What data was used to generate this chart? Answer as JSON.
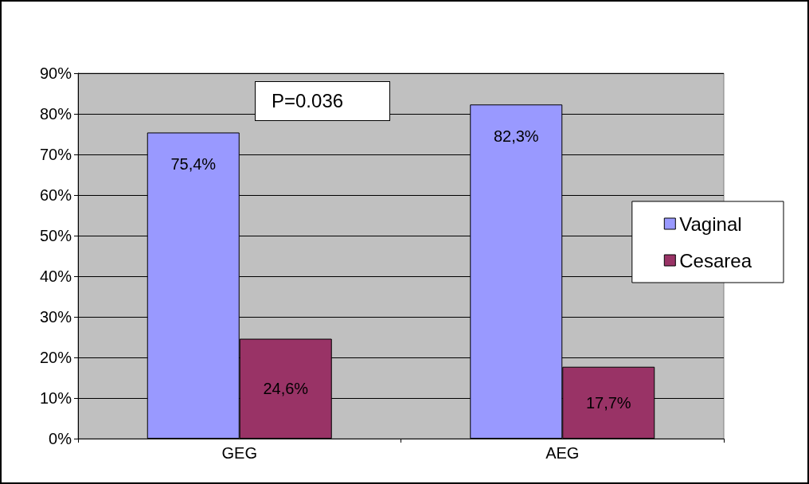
{
  "chart_data": {
    "type": "bar",
    "categories": [
      "GEG",
      "AEG"
    ],
    "series": [
      {
        "name": "Vaginal",
        "color": "#9999ff",
        "values": [
          75.4,
          82.3
        ],
        "value_labels": [
          "75,4%",
          "82,3%"
        ]
      },
      {
        "name": "Cesarea",
        "color": "#993366",
        "values": [
          24.6,
          17.7
        ],
        "value_labels": [
          "24,6%",
          "17,7%"
        ]
      }
    ],
    "ylim": [
      0,
      90
    ],
    "yticks": [
      {
        "value": 0,
        "label": "0%"
      },
      {
        "value": 10,
        "label": "10%"
      },
      {
        "value": 20,
        "label": "20%"
      },
      {
        "value": 30,
        "label": "30%"
      },
      {
        "value": 40,
        "label": "40%"
      },
      {
        "value": 50,
        "label": "50%"
      },
      {
        "value": 60,
        "label": "60%"
      },
      {
        "value": 70,
        "label": "70%"
      },
      {
        "value": 80,
        "label": "80%"
      },
      {
        "value": 90,
        "label": "90%"
      }
    ],
    "grid": "y",
    "legend": "right",
    "annotations": [
      "P=0.036"
    ]
  }
}
